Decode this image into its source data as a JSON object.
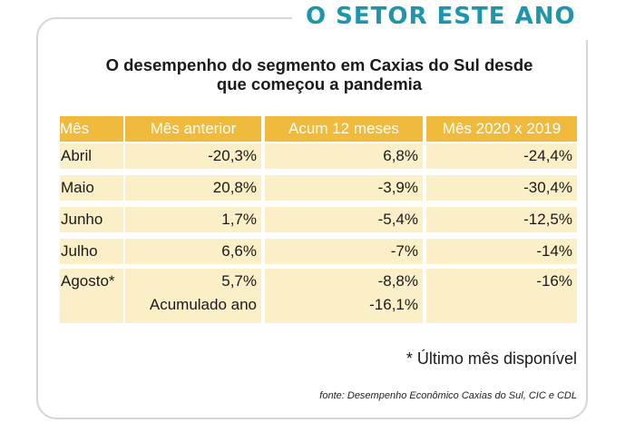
{
  "header": {
    "title": "O SETOR ESTE ANO"
  },
  "subtitle": {
    "line1": "O desempenho do segmento em Caxias do Sul desde",
    "line2": "que começou a pandemia"
  },
  "table": {
    "columns": [
      "Mês",
      "Mês anterior",
      "Acum 12 meses",
      "Mês 2020 x 2019"
    ],
    "rows": [
      {
        "month": "Abril",
        "prev": "-20,3%",
        "acum": "6,8%",
        "yoy": "-24,4%"
      },
      {
        "month": "Maio",
        "prev": "20,8%",
        "acum": "-3,9%",
        "yoy": "-30,4%"
      },
      {
        "month": "Junho",
        "prev": "1,7%",
        "acum": "-5,4%",
        "yoy": "-12,5%"
      },
      {
        "month": "Julho",
        "prev": "6,6%",
        "acum": "-7%",
        "yoy": "-14%"
      },
      {
        "month": "Agosto*",
        "prev": "5,7%",
        "acum": "-8,8%",
        "yoy": "-16%"
      }
    ],
    "accumulated": {
      "label": "Acumulado ano",
      "value": "-16,1%"
    }
  },
  "footnote": "* Último mês disponível",
  "source": "fonte: Desempenho Econômico Caxias do Sul, CIC e CDL",
  "colors": {
    "accent": "#1c95ad",
    "header_bg": "#f0ba3c",
    "row_bg": "#fbefc8"
  }
}
